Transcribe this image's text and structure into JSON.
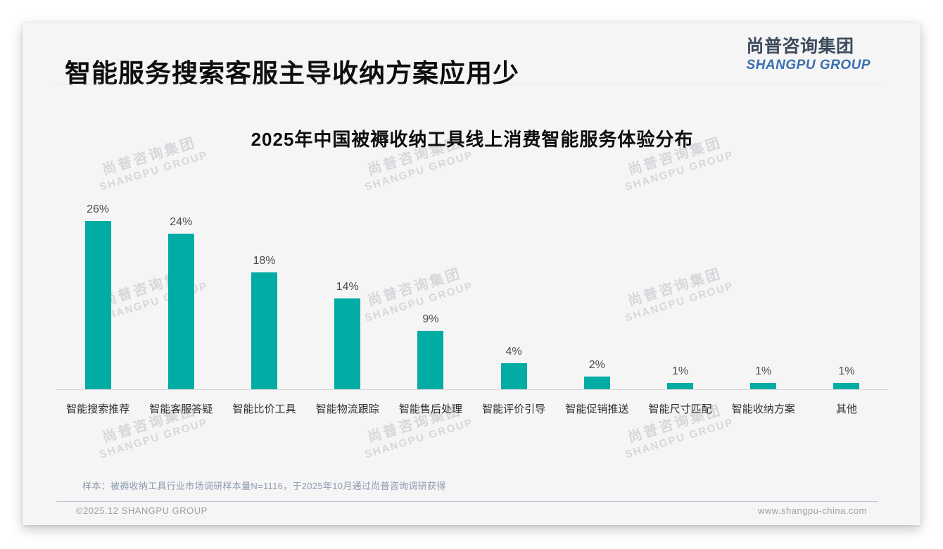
{
  "page": {
    "title": "智能服务搜索客服主导收纳方案应用少",
    "logo": {
      "cn": "尚普咨询集团",
      "en": "SHANGPU GROUP"
    },
    "watermark": {
      "cn": "尚普咨询集团",
      "en": "SHANGPU GROUP"
    },
    "note": "样本：被褥收纳工具行业市场调研样本量N=1116，于2025年10月通过尚普咨询调研获得",
    "footer": {
      "left": "©2025.12 SHANGPU GROUP",
      "right": "www.shangpu-china.com"
    }
  },
  "colors": {
    "bar": "#00aca4",
    "logo_blue": "#3a6fae",
    "card_bg": "#f5f5f6"
  },
  "chart_data": {
    "type": "bar",
    "title": "2025年中国被褥收纳工具线上消费智能服务体验分布",
    "categories": [
      "智能搜索推荐",
      "智能客服答疑",
      "智能比价工具",
      "智能物流跟踪",
      "智能售后处理",
      "智能评价引导",
      "智能促销推送",
      "智能尺寸匹配",
      "智能收纳方案",
      "其他"
    ],
    "values": [
      26,
      24,
      18,
      14,
      9,
      4,
      2,
      1,
      1,
      1
    ],
    "value_labels": [
      "26%",
      "24%",
      "18%",
      "14%",
      "9%",
      "4%",
      "2%",
      "1%",
      "1%",
      "1%"
    ],
    "unit": "%",
    "xlabel": "",
    "ylabel": "",
    "ylim": [
      0,
      28
    ],
    "grid": false,
    "legend": null,
    "bar_color": "#00aca4"
  }
}
